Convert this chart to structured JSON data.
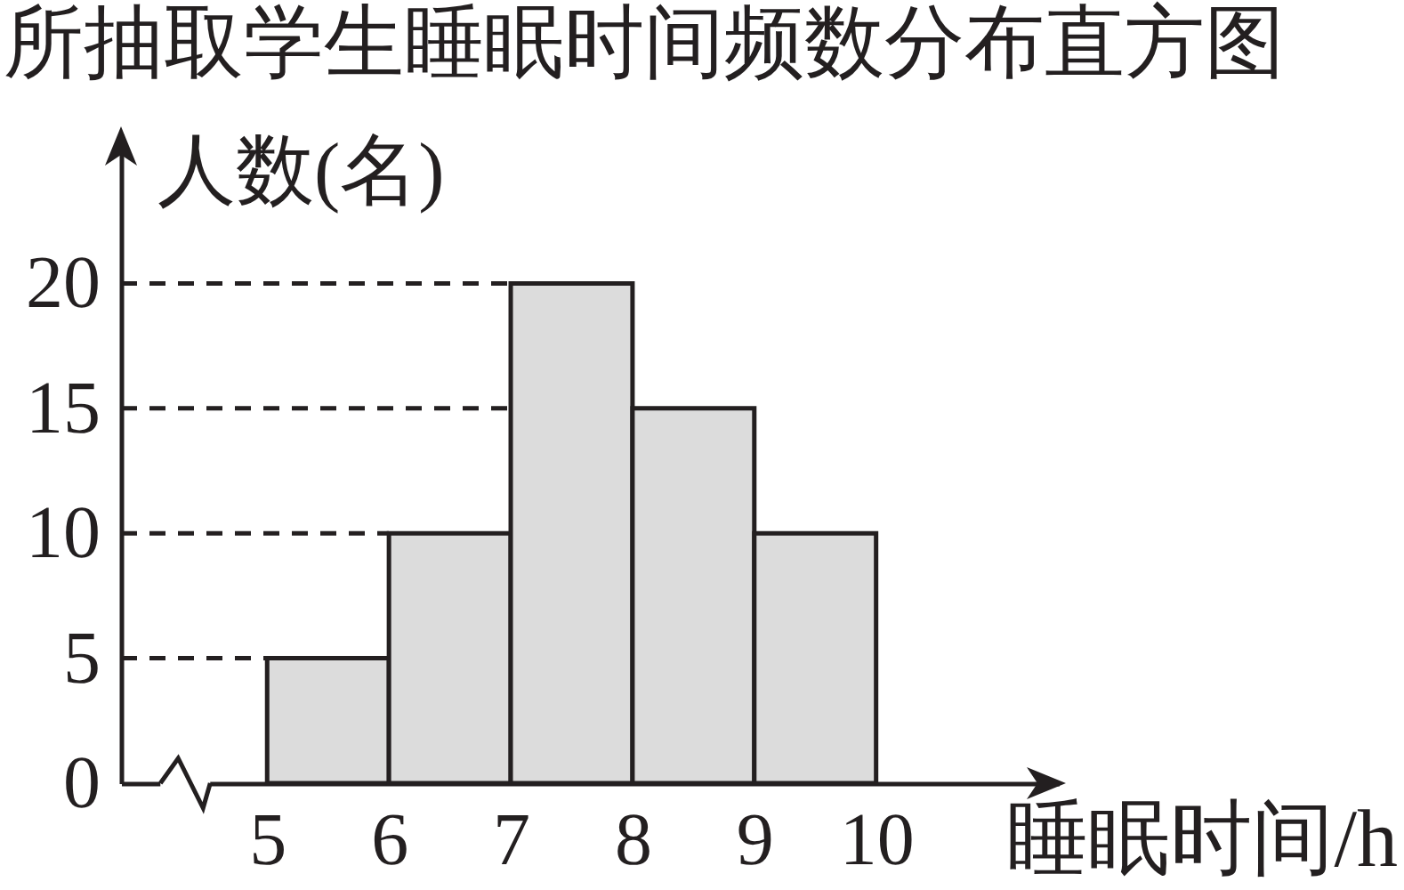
{
  "chart_data": {
    "type": "histogram",
    "title": "所抽取学生睡眠时间频数分布直方图",
    "xlabel": "睡眠时间/h",
    "ylabel": "人数(名)",
    "bins": [
      5,
      6,
      7,
      8,
      9,
      10
    ],
    "values": [
      5,
      10,
      20,
      15,
      10
    ],
    "color": "#dcdcdc",
    "xlim": [
      3.8,
      11.5
    ],
    "xticks": [
      5,
      6,
      7,
      8,
      9,
      10
    ],
    "ylim": [
      0,
      26
    ],
    "yticks": [
      0,
      5,
      10,
      15,
      20
    ],
    "ref_lines": [
      {
        "axis": "y",
        "value": 20,
        "color": "#231f20",
        "line_style": "dashed"
      },
      {
        "axis": "y",
        "value": 15,
        "color": "#231f20",
        "line_style": "dashed"
      },
      {
        "axis": "y",
        "value": 10,
        "color": "#231f20",
        "line_style": "dashed"
      },
      {
        "axis": "y",
        "value": 5,
        "color": "#231f20",
        "line_style": "dashed"
      }
    ]
  }
}
